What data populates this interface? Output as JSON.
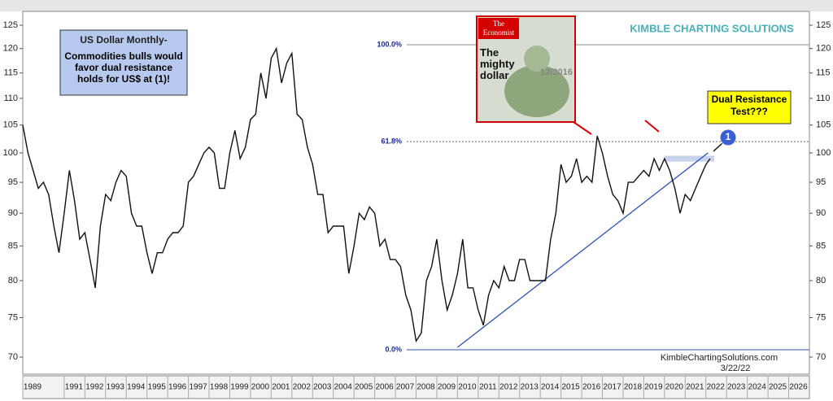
{
  "chart_data": {
    "type": "line",
    "title": "US Dollar Monthly-",
    "subtitle": "Commodities bulls would favor dual resistance holds for US$ at (1)!",
    "log_scale": true,
    "color": "#111111",
    "xlim": [
      1989,
      2027
    ],
    "xticks": [
      1989,
      1991,
      1992,
      1993,
      1994,
      1995,
      1996,
      1997,
      1998,
      1999,
      2000,
      2001,
      2002,
      2003,
      2004,
      2005,
      2006,
      2007,
      2008,
      2009,
      2010,
      2011,
      2012,
      2013,
      2014,
      2015,
      2016,
      2017,
      2018,
      2019,
      2020,
      2021,
      2022,
      2023,
      2024,
      2025,
      2026
    ],
    "ylim": [
      70,
      125
    ],
    "yticks": [
      70,
      75,
      80,
      85,
      90,
      95,
      100,
      105,
      110,
      115,
      120,
      125
    ],
    "x": [
      1989,
      1989.25,
      1989.5,
      1989.75,
      1990,
      1990.25,
      1990.5,
      1990.75,
      1991,
      1991.25,
      1991.5,
      1991.75,
      1992,
      1992.25,
      1992.5,
      1992.75,
      1993,
      1993.25,
      1993.5,
      1993.75,
      1994,
      1994.25,
      1994.5,
      1994.75,
      1995,
      1995.25,
      1995.5,
      1995.75,
      1996,
      1996.25,
      1996.5,
      1996.75,
      1997,
      1997.25,
      1997.5,
      1997.75,
      1998,
      1998.25,
      1998.5,
      1998.75,
      1999,
      1999.25,
      1999.5,
      1999.75,
      2000,
      2000.25,
      2000.5,
      2000.75,
      2001,
      2001.25,
      2001.5,
      2001.75,
      2002,
      2002.25,
      2002.5,
      2002.75,
      2003,
      2003.25,
      2003.5,
      2003.75,
      2004,
      2004.25,
      2004.5,
      2004.75,
      2005,
      2005.25,
      2005.5,
      2005.75,
      2006,
      2006.25,
      2006.5,
      2006.75,
      2007,
      2007.25,
      2007.5,
      2007.75,
      2008,
      2008.25,
      2008.5,
      2008.75,
      2009,
      2009.25,
      2009.5,
      2009.75,
      2010,
      2010.25,
      2010.5,
      2010.75,
      2011,
      2011.25,
      2011.5,
      2011.75,
      2012,
      2012.25,
      2012.5,
      2012.75,
      2013,
      2013.25,
      2013.5,
      2013.75,
      2014,
      2014.25,
      2014.5,
      2014.75,
      2015,
      2015.25,
      2015.5,
      2015.75,
      2016,
      2016.25,
      2016.5,
      2016.75,
      2017,
      2017.25,
      2017.5,
      2017.75,
      2018,
      2018.25,
      2018.5,
      2018.75,
      2019,
      2019.25,
      2019.5,
      2019.75,
      2020,
      2020.25,
      2020.5,
      2020.75,
      2021,
      2021.25,
      2021.5,
      2021.75,
      2022,
      2022.2
    ],
    "values": [
      105,
      100,
      97,
      94,
      95,
      93,
      88,
      84,
      90,
      97,
      92,
      86,
      87,
      83,
      79,
      88,
      93,
      92,
      95,
      97,
      96,
      90,
      88,
      88,
      84,
      81,
      84,
      84,
      86,
      87,
      87,
      88,
      95,
      96,
      98,
      100,
      101,
      100,
      94,
      94,
      100,
      104,
      99,
      101,
      106,
      107,
      115,
      110,
      118,
      120,
      113,
      117,
      119,
      107,
      106,
      101,
      98,
      93,
      93,
      87,
      88,
      88,
      88,
      81,
      85,
      90,
      89,
      91,
      90,
      85,
      86,
      83,
      83,
      82,
      78,
      76,
      72,
      73,
      80,
      82,
      86,
      80,
      76,
      78,
      81,
      86,
      79,
      79,
      76,
      74,
      78,
      80,
      79,
      82,
      80,
      80,
      83,
      83,
      80,
      80,
      80,
      80,
      86,
      90,
      98,
      95,
      96,
      99,
      95,
      96,
      95,
      103,
      100,
      96,
      93,
      92,
      90,
      95,
      95,
      96,
      97,
      96,
      99,
      97,
      99,
      97,
      94,
      90,
      93,
      92,
      94,
      96,
      98,
      99
    ],
    "fib_levels": [
      {
        "label": "100.0%",
        "value": 120.8
      },
      {
        "label": "61.8%",
        "value": 102
      },
      {
        "label": "0.0%",
        "value": 70.9
      }
    ],
    "trendline": {
      "x": [
        2010,
        2022.1
      ],
      "values": [
        71.2,
        100
      ]
    },
    "resistance_band": {
      "x": [
        2020,
        2022.4
      ],
      "values": [
        98.5,
        99.5
      ]
    },
    "annotations": {
      "callout": "Dual Resistance Test???",
      "marker": "1",
      "website": "KimbleChartingSolutions.com",
      "date": "3/22/22",
      "logo": "KIMBLE CHARTING SOLUTIONS",
      "cover_brand": "The Economist",
      "cover_headline": "The mighty dollar",
      "cover_date": "12/2016"
    }
  }
}
